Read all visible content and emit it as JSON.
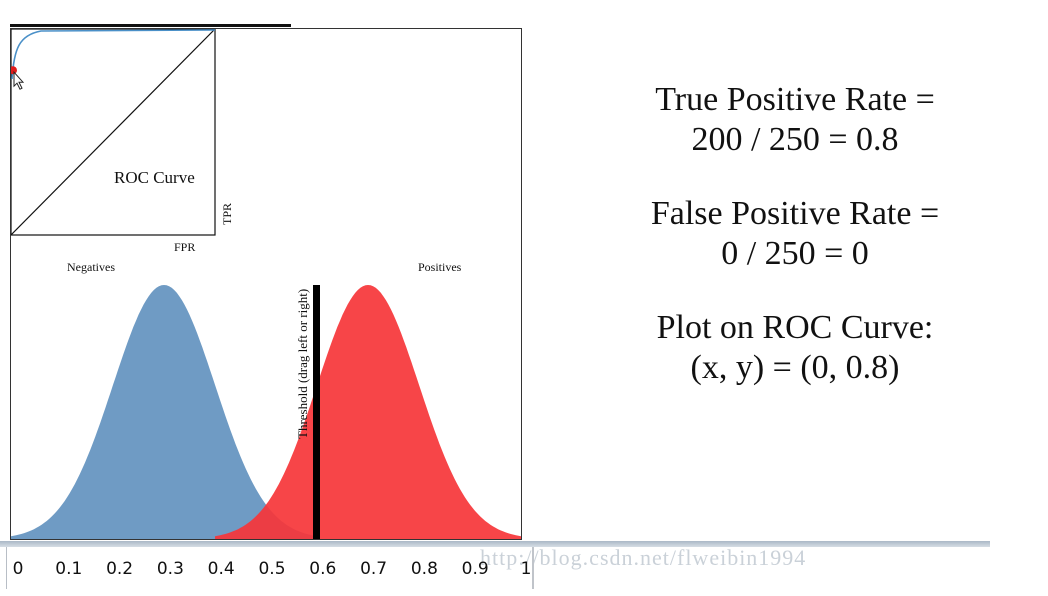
{
  "chart_data": {
    "type": "area",
    "x_ticks": [
      "0",
      "0.1",
      "0.2",
      "0.3",
      "0.4",
      "0.5",
      "0.6",
      "0.7",
      "0.8",
      "0.9",
      "1"
    ],
    "xlim": [
      0,
      1
    ],
    "series": [
      {
        "name": "Negatives",
        "mean": 0.3,
        "color": "#6f9bc4"
      },
      {
        "name": "Positives",
        "mean": 0.7,
        "color": "#f63538"
      }
    ],
    "threshold": {
      "value": 0.6,
      "label": "Threshold (drag left or right)"
    },
    "roc_inset": {
      "title": "ROC Curve",
      "xlabel": "FPR",
      "ylabel": "TPR",
      "current_point": {
        "fpr": 0,
        "tpr": 0.8
      }
    }
  },
  "explanation": {
    "tpr_line1": "True Positive Rate =",
    "tpr_line2": "200 / 250 = 0.8",
    "fpr_line1": "False Positive Rate =",
    "fpr_line2": "0 / 250 = 0",
    "plot_line1": "Plot on ROC Curve:",
    "plot_line2": "(x, y) = (0, 0.8)"
  },
  "watermark": "http://blog.csdn.net/flweibin1994"
}
